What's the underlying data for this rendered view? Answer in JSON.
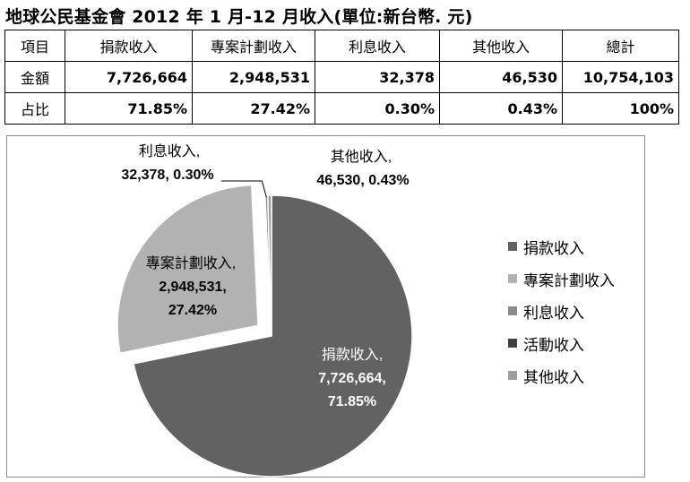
{
  "title": "地球公民基金會 2012 年 1 月-12 月收入(單位:新台幣. 元)",
  "table": {
    "header": [
      "項目",
      "捐款收入",
      "專案計劃收入",
      "利息收入",
      "其他收入",
      "總計"
    ],
    "rows": [
      [
        "金額",
        "7,726,664",
        "2,948,531",
        "32,378",
        "46,530",
        "10,754,103"
      ],
      [
        "占比",
        "71.85%",
        "27.42%",
        "0.30%",
        "0.43%",
        "100%"
      ]
    ]
  },
  "chart_data": {
    "type": "pie",
    "categories": [
      "捐款收入",
      "專案計劃收入",
      "利息收入",
      "活動收入",
      "其他收入"
    ],
    "values": [
      7726664,
      2948531,
      32378,
      0,
      46530
    ],
    "percents": [
      71.85,
      27.42,
      0.3,
      0.0,
      0.43
    ],
    "colors": [
      "#626262",
      "#b2b2b2",
      "#8a8a8a",
      "#404040",
      "#9d9d9d"
    ],
    "exploded": [
      false,
      true,
      false,
      false,
      false
    ],
    "data_labels": [
      {
        "name": "捐款收入,",
        "value": "7,726,664,",
        "percent": "71.85%"
      },
      {
        "name": "專案計劃收入,",
        "value": "2,948,531,",
        "percent": "27.42%"
      },
      {
        "name": "利息收入,",
        "line2": "32,378, 0.30%"
      },
      {
        "name": "其他收入,",
        "line2": "46,530, 0.43%"
      }
    ],
    "legend": {
      "placement": "right",
      "items": [
        "捐款收入",
        "專案計劃收入",
        "利息收入",
        "活動收入",
        "其他收入"
      ]
    }
  }
}
